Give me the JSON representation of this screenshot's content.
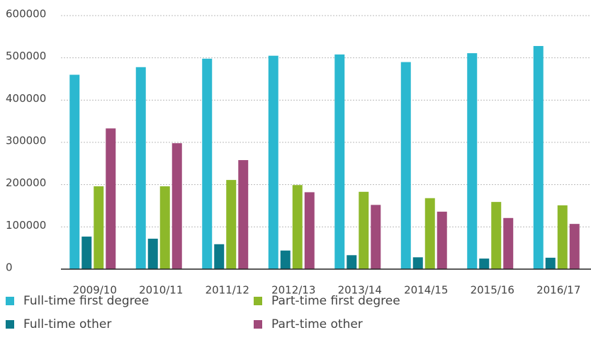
{
  "chart_data": {
    "type": "bar",
    "categories": [
      "2009/10",
      "2010/11",
      "2011/12",
      "2012/13",
      "2013/14",
      "2014/15",
      "2015/16",
      "2016/17"
    ],
    "series": [
      {
        "name": "Full-time first degree",
        "color": "#2bb8d0",
        "values": [
          460000,
          478000,
          498000,
          505000,
          508000,
          490000,
          511000,
          528000
        ]
      },
      {
        "name": "Full-time other",
        "color": "#0b7a8a",
        "values": [
          77000,
          72000,
          59000,
          44000,
          33000,
          28000,
          25000,
          27000
        ]
      },
      {
        "name": "Part-time first degree",
        "color": "#8db82a",
        "values": [
          196000,
          196000,
          211000,
          199000,
          183000,
          168000,
          159000,
          151000
        ]
      },
      {
        "name": "Part-time other",
        "color": "#a04a7a",
        "values": [
          333000,
          298000,
          258000,
          182000,
          152000,
          136000,
          121000,
          107000
        ]
      }
    ],
    "ylim": [
      0,
      600000
    ],
    "yticks": [
      0,
      100000,
      200000,
      300000,
      400000,
      500000,
      600000
    ],
    "grid": true,
    "legend": "bottom"
  }
}
